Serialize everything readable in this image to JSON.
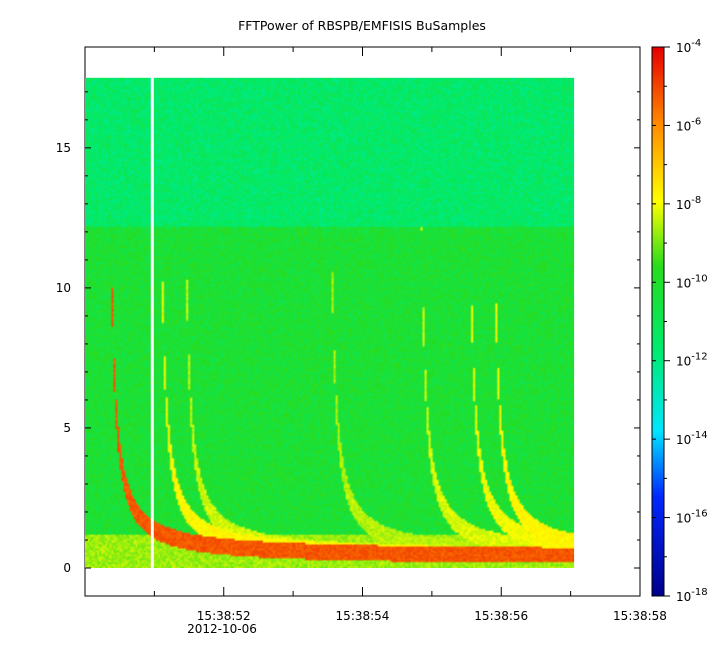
{
  "chart_data": {
    "type": "heatmap",
    "title": "FFTPower of RBSPB/EMFISIS  BuSamples",
    "xlabel": "",
    "ylabel": "",
    "x_date_label": "2012-10-06",
    "x_ticks": [
      "15:38:52",
      "15:38:54",
      "15:38:56",
      "15:38:58"
    ],
    "x_tick_seconds": [
      52,
      54,
      56,
      58
    ],
    "xlim_seconds": [
      50.0,
      58.0
    ],
    "data_xlim_seconds": [
      50.0,
      57.05
    ],
    "gap_x_seconds": 50.97,
    "yticks": [
      0,
      5,
      10,
      15
    ],
    "ylim": [
      -1,
      18.6
    ],
    "data_ylim": [
      0,
      17.5
    ],
    "colorbar": {
      "scale": "log",
      "range": [
        1e-18,
        0.0001
      ],
      "tick_exponents": [
        -4,
        -6,
        -8,
        -10,
        -12,
        -14,
        -16,
        -18
      ],
      "tick_labels": [
        "10-4",
        "10-6",
        "10-8",
        "10-10",
        "10-12",
        "10-14",
        "10-16",
        "10-18"
      ]
    },
    "upper_band": {
      "y_from": 12.2,
      "y_to": 17.5,
      "log_power": -11.5
    },
    "lower_band": {
      "y_from": 0,
      "y_to": 12.2,
      "log_power": -10.2
    },
    "whistlers": [
      {
        "t0": 50.37,
        "strength": -5.2
      },
      {
        "t0": 51.1,
        "strength": -7.8
      },
      {
        "t0": 51.45,
        "strength": -8.3
      },
      {
        "t0": 53.55,
        "strength": -8.5
      },
      {
        "t0": 54.85,
        "strength": -8.2
      },
      {
        "t0": 55.55,
        "strength": -8.0
      },
      {
        "t0": 55.9,
        "strength": -7.8
      }
    ]
  }
}
